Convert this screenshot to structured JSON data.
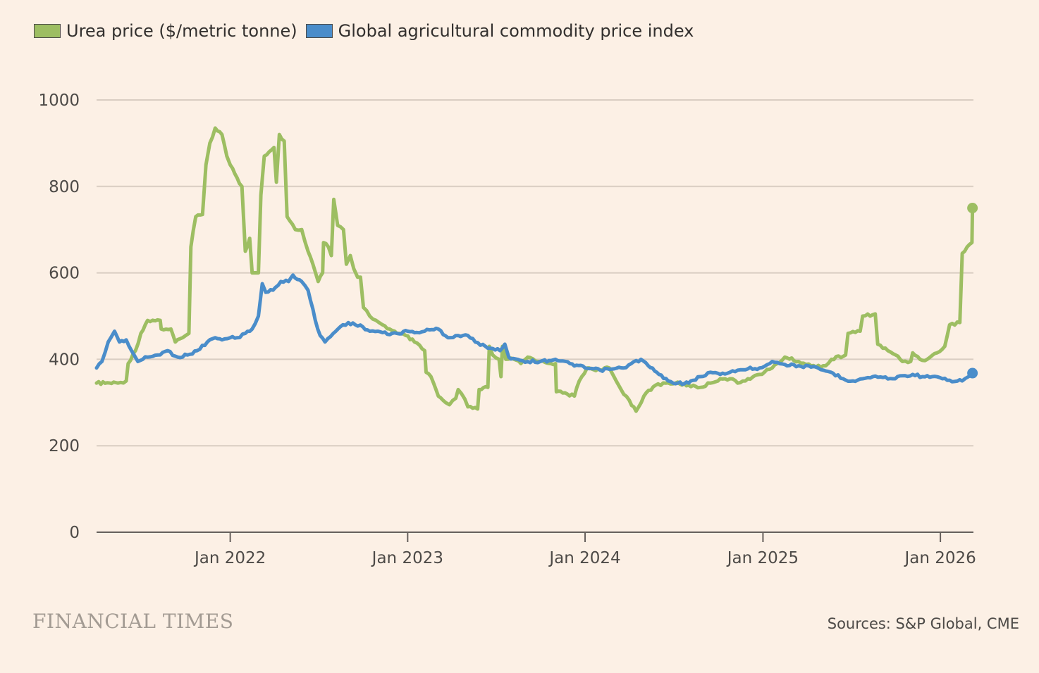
{
  "chart_data": {
    "type": "line",
    "title": "",
    "xlabel": "",
    "ylabel": "",
    "ylim": [
      0,
      1000
    ],
    "yticks": [
      0,
      200,
      400,
      600,
      800,
      1000
    ],
    "xlim": [
      "2021-04-01",
      "2026-03-10"
    ],
    "xticks": [
      {
        "date": "2022-01-01",
        "label": "Jan 2022"
      },
      {
        "date": "2023-01-01",
        "label": "Jan 2023"
      },
      {
        "date": "2024-01-01",
        "label": "Jan 2024"
      },
      {
        "date": "2025-01-01",
        "label": "Jan 2025"
      },
      {
        "date": "2026-01-01",
        "label": "Jan 2026"
      }
    ],
    "grid": true,
    "legend_position": "top-left",
    "series": [
      {
        "name": "Urea price ($/metric tonne)",
        "color": "#9dbe62",
        "end_marker": true,
        "points": [
          [
            "2021-04-01",
            345
          ],
          [
            "2021-05-15",
            345
          ],
          [
            "2021-06-01",
            350
          ],
          [
            "2021-06-05",
            390
          ],
          [
            "2021-06-20",
            420
          ],
          [
            "2021-07-01",
            460
          ],
          [
            "2021-07-15",
            490
          ],
          [
            "2021-08-10",
            490
          ],
          [
            "2021-08-12",
            470
          ],
          [
            "2021-09-01",
            470
          ],
          [
            "2021-09-10",
            440
          ],
          [
            "2021-09-25",
            450
          ],
          [
            "2021-10-08",
            460
          ],
          [
            "2021-10-12",
            660
          ],
          [
            "2021-10-22",
            730
          ],
          [
            "2021-11-05",
            735
          ],
          [
            "2021-11-12",
            850
          ],
          [
            "2021-11-20",
            900
          ],
          [
            "2021-12-01",
            935
          ],
          [
            "2021-12-15",
            920
          ],
          [
            "2021-12-25",
            870
          ],
          [
            "2022-01-01",
            850
          ],
          [
            "2022-01-15",
            820
          ],
          [
            "2022-01-25",
            800
          ],
          [
            "2022-02-01",
            650
          ],
          [
            "2022-02-10",
            680
          ],
          [
            "2022-02-15",
            600
          ],
          [
            "2022-02-28",
            600
          ],
          [
            "2022-03-05",
            780
          ],
          [
            "2022-03-12",
            870
          ],
          [
            "2022-03-22",
            880
          ],
          [
            "2022-04-01",
            890
          ],
          [
            "2022-04-06",
            810
          ],
          [
            "2022-04-12",
            920
          ],
          [
            "2022-04-22",
            905
          ],
          [
            "2022-04-28",
            730
          ],
          [
            "2022-05-15",
            700
          ],
          [
            "2022-05-28",
            700
          ],
          [
            "2022-06-10",
            650
          ],
          [
            "2022-06-20",
            620
          ],
          [
            "2022-07-01",
            580
          ],
          [
            "2022-07-10",
            600
          ],
          [
            "2022-07-12",
            670
          ],
          [
            "2022-07-22",
            660
          ],
          [
            "2022-07-28",
            640
          ],
          [
            "2022-08-02",
            770
          ],
          [
            "2022-08-10",
            710
          ],
          [
            "2022-08-22",
            700
          ],
          [
            "2022-08-28",
            620
          ],
          [
            "2022-09-05",
            640
          ],
          [
            "2022-09-12",
            610
          ],
          [
            "2022-09-20",
            590
          ],
          [
            "2022-09-26",
            590
          ],
          [
            "2022-10-02",
            520
          ],
          [
            "2022-10-15",
            500
          ],
          [
            "2022-10-28",
            490
          ],
          [
            "2022-11-10",
            480
          ],
          [
            "2022-11-25",
            470
          ],
          [
            "2022-12-10",
            460
          ],
          [
            "2022-12-28",
            455
          ],
          [
            "2023-01-15",
            440
          ],
          [
            "2023-02-05",
            420
          ],
          [
            "2023-02-08",
            370
          ],
          [
            "2023-02-18",
            360
          ],
          [
            "2023-03-05",
            315
          ],
          [
            "2023-03-20",
            300
          ],
          [
            "2023-03-28",
            295
          ],
          [
            "2023-04-10",
            310
          ],
          [
            "2023-04-15",
            330
          ],
          [
            "2023-04-22",
            320
          ],
          [
            "2023-05-05",
            290
          ],
          [
            "2023-05-25",
            285
          ],
          [
            "2023-05-28",
            330
          ],
          [
            "2023-06-15",
            335
          ],
          [
            "2023-06-18",
            430
          ],
          [
            "2023-06-25",
            410
          ],
          [
            "2023-07-08",
            400
          ],
          [
            "2023-07-12",
            360
          ],
          [
            "2023-07-15",
            430
          ],
          [
            "2023-07-22",
            400
          ],
          [
            "2023-08-08",
            400
          ],
          [
            "2023-08-22",
            390
          ],
          [
            "2023-09-05",
            405
          ],
          [
            "2023-10-01",
            395
          ],
          [
            "2023-11-01",
            390
          ],
          [
            "2023-11-03",
            325
          ],
          [
            "2023-11-25",
            320
          ],
          [
            "2023-12-10",
            315
          ],
          [
            "2023-12-20",
            350
          ],
          [
            "2024-01-05",
            380
          ],
          [
            "2024-02-01",
            375
          ],
          [
            "2024-02-20",
            380
          ],
          [
            "2024-03-05",
            350
          ],
          [
            "2024-03-15",
            330
          ],
          [
            "2024-04-01",
            305
          ],
          [
            "2024-04-15",
            280
          ],
          [
            "2024-05-01",
            315
          ],
          [
            "2024-05-25",
            340
          ],
          [
            "2024-06-15",
            345
          ],
          [
            "2024-07-05",
            345
          ],
          [
            "2024-08-01",
            340
          ],
          [
            "2024-08-25",
            335
          ],
          [
            "2024-09-15",
            345
          ],
          [
            "2024-10-05",
            355
          ],
          [
            "2024-10-25",
            355
          ],
          [
            "2024-11-10",
            345
          ],
          [
            "2024-12-01",
            355
          ],
          [
            "2024-12-25",
            365
          ],
          [
            "2025-01-20",
            380
          ],
          [
            "2025-02-15",
            405
          ],
          [
            "2025-03-15",
            395
          ],
          [
            "2025-04-10",
            385
          ],
          [
            "2025-05-10",
            385
          ],
          [
            "2025-05-22",
            400
          ],
          [
            "2025-06-20",
            410
          ],
          [
            "2025-06-25",
            460
          ],
          [
            "2025-07-20",
            465
          ],
          [
            "2025-07-25",
            500
          ],
          [
            "2025-08-20",
            505
          ],
          [
            "2025-08-25",
            435
          ],
          [
            "2025-09-15",
            420
          ],
          [
            "2025-10-01",
            410
          ],
          [
            "2025-10-15",
            395
          ],
          [
            "2025-11-01",
            395
          ],
          [
            "2025-11-05",
            415
          ],
          [
            "2025-11-20",
            400
          ],
          [
            "2025-12-05",
            400
          ],
          [
            "2025-12-25",
            415
          ],
          [
            "2026-01-10",
            430
          ],
          [
            "2026-01-20",
            480
          ],
          [
            "2026-02-10",
            485
          ],
          [
            "2026-02-15",
            645
          ],
          [
            "2026-02-25",
            660
          ],
          [
            "2026-03-07",
            670
          ],
          [
            "2026-03-08",
            750
          ]
        ]
      },
      {
        "name": "Global agricultural commodity price index",
        "color": "#4a8dca",
        "end_marker": true,
        "points": [
          [
            "2021-04-01",
            380
          ],
          [
            "2021-04-12",
            395
          ],
          [
            "2021-04-25",
            440
          ],
          [
            "2021-05-08",
            465
          ],
          [
            "2021-05-18",
            440
          ],
          [
            "2021-06-01",
            445
          ],
          [
            "2021-06-12",
            420
          ],
          [
            "2021-06-25",
            395
          ],
          [
            "2021-07-15",
            405
          ],
          [
            "2021-08-05",
            410
          ],
          [
            "2021-08-25",
            420
          ],
          [
            "2021-09-15",
            405
          ],
          [
            "2021-10-05",
            410
          ],
          [
            "2021-10-25",
            420
          ],
          [
            "2021-11-15",
            440
          ],
          [
            "2021-12-01",
            450
          ],
          [
            "2021-12-15",
            445
          ],
          [
            "2022-01-01",
            450
          ],
          [
            "2022-01-15",
            450
          ],
          [
            "2022-02-01",
            460
          ],
          [
            "2022-02-15",
            470
          ],
          [
            "2022-02-28",
            500
          ],
          [
            "2022-03-08",
            575
          ],
          [
            "2022-03-15",
            555
          ],
          [
            "2022-03-30",
            560
          ],
          [
            "2022-04-15",
            580
          ],
          [
            "2022-05-01",
            580
          ],
          [
            "2022-05-10",
            595
          ],
          [
            "2022-05-28",
            580
          ],
          [
            "2022-06-10",
            560
          ],
          [
            "2022-06-25",
            490
          ],
          [
            "2022-07-05",
            455
          ],
          [
            "2022-07-15",
            440
          ],
          [
            "2022-08-01",
            460
          ],
          [
            "2022-08-15",
            475
          ],
          [
            "2022-09-01",
            485
          ],
          [
            "2022-09-15",
            480
          ],
          [
            "2022-10-01",
            475
          ],
          [
            "2022-10-15",
            465
          ],
          [
            "2022-11-01",
            465
          ],
          [
            "2022-11-20",
            458
          ],
          [
            "2022-12-10",
            460
          ],
          [
            "2023-01-01",
            465
          ],
          [
            "2023-01-20",
            462
          ],
          [
            "2023-02-15",
            468
          ],
          [
            "2023-03-05",
            470
          ],
          [
            "2023-03-25",
            450
          ],
          [
            "2023-04-15",
            455
          ],
          [
            "2023-05-05",
            455
          ],
          [
            "2023-05-20",
            440
          ],
          [
            "2023-06-10",
            430
          ],
          [
            "2023-06-25",
            425
          ],
          [
            "2023-07-10",
            420
          ],
          [
            "2023-07-20",
            435
          ],
          [
            "2023-07-28",
            405
          ],
          [
            "2023-08-15",
            400
          ],
          [
            "2023-09-05",
            395
          ],
          [
            "2023-10-01",
            395
          ],
          [
            "2023-11-01",
            400
          ],
          [
            "2023-12-01",
            390
          ],
          [
            "2024-01-01",
            380
          ],
          [
            "2024-02-01",
            375
          ],
          [
            "2024-03-01",
            378
          ],
          [
            "2024-03-20",
            380
          ],
          [
            "2024-04-05",
            390
          ],
          [
            "2024-04-25",
            400
          ],
          [
            "2024-05-10",
            385
          ],
          [
            "2024-06-01",
            365
          ],
          [
            "2024-06-20",
            350
          ],
          [
            "2024-07-10",
            345
          ],
          [
            "2024-08-01",
            345
          ],
          [
            "2024-08-25",
            360
          ],
          [
            "2024-09-15",
            370
          ],
          [
            "2024-10-05",
            365
          ],
          [
            "2024-10-25",
            370
          ],
          [
            "2024-11-10",
            375
          ],
          [
            "2024-12-01",
            378
          ],
          [
            "2024-12-25",
            380
          ],
          [
            "2025-01-20",
            395
          ],
          [
            "2025-02-15",
            388
          ],
          [
            "2025-03-15",
            385
          ],
          [
            "2025-04-10",
            382
          ],
          [
            "2025-05-05",
            375
          ],
          [
            "2025-05-25",
            368
          ],
          [
            "2025-06-15",
            355
          ],
          [
            "2025-07-05",
            350
          ],
          [
            "2025-07-25",
            355
          ],
          [
            "2025-08-15",
            360
          ],
          [
            "2025-09-05",
            358
          ],
          [
            "2025-09-25",
            355
          ],
          [
            "2025-10-15",
            362
          ],
          [
            "2025-11-05",
            365
          ],
          [
            "2025-11-25",
            360
          ],
          [
            "2025-12-15",
            360
          ],
          [
            "2026-01-05",
            355
          ],
          [
            "2026-01-25",
            348
          ],
          [
            "2026-02-15",
            350
          ],
          [
            "2026-02-28",
            360
          ],
          [
            "2026-03-08",
            368
          ]
        ]
      }
    ]
  },
  "legend": {
    "items": [
      {
        "label": "Urea price ($/metric tonne)",
        "color": "#9dbe62"
      },
      {
        "label": "Global agricultural commodity price index",
        "color": "#4a8dca"
      }
    ]
  },
  "footer": {
    "logo_text": "FINANCIAL TIMES",
    "source": "Sources: S&P Global, CME"
  },
  "colors": {
    "background": "#fcf0e5",
    "gridline": "#d9cdc2",
    "axis": "#66605c"
  }
}
